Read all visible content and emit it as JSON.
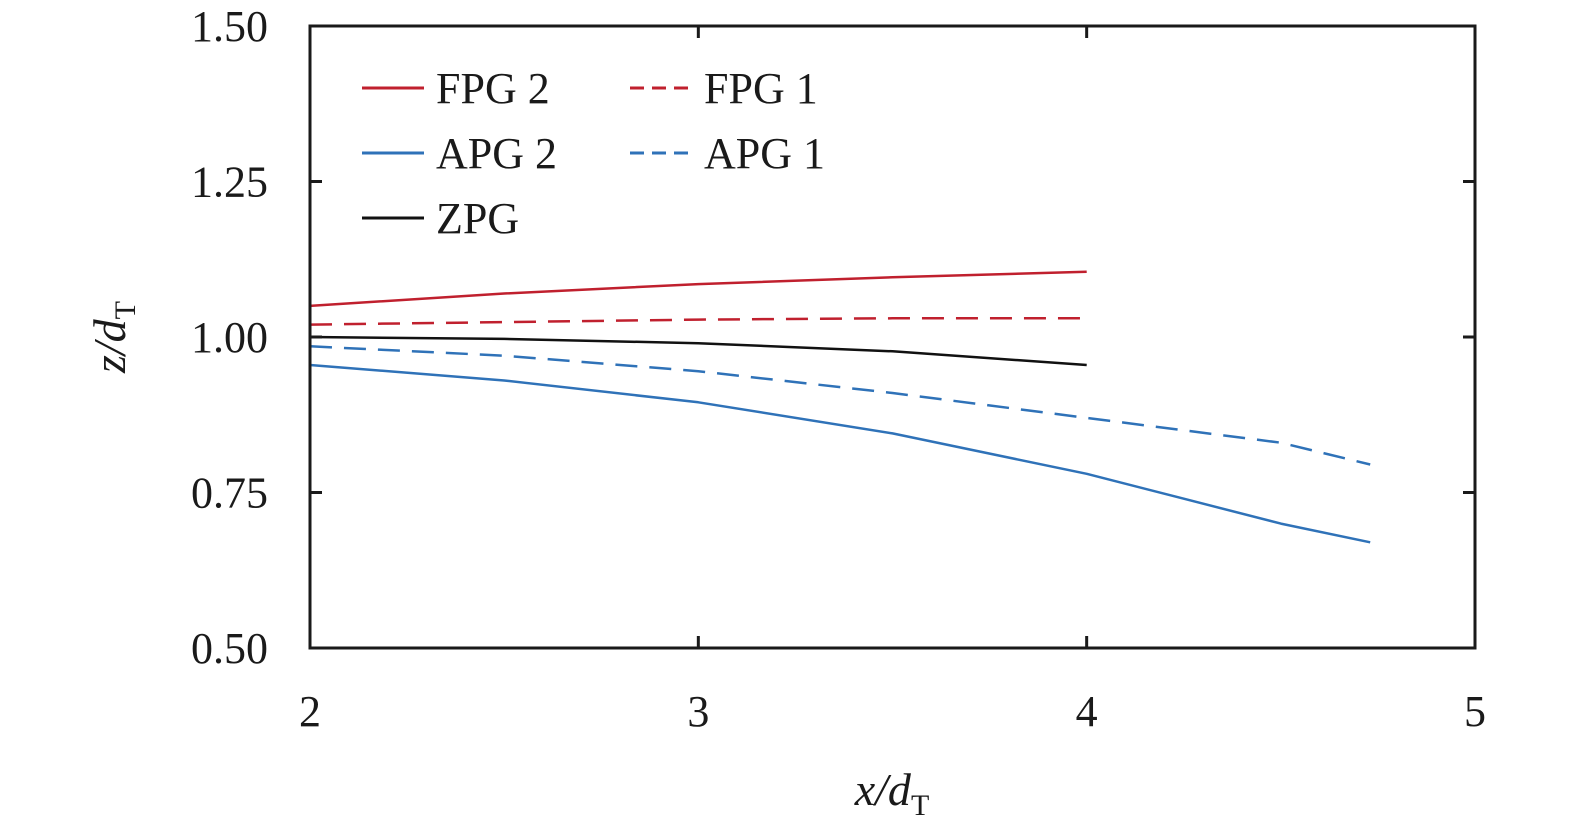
{
  "chart_data": {
    "type": "line",
    "xlabel": {
      "main": "x/d",
      "sub": "T"
    },
    "ylabel": {
      "main": "z/d",
      "sub": "T"
    },
    "xlim": [
      2,
      5
    ],
    "ylim": [
      0.5,
      1.5
    ],
    "x_ticks": [
      "2",
      "3",
      "4",
      "5"
    ],
    "y_ticks": [
      "0.50",
      "0.75",
      "1.00",
      "1.25",
      "1.50"
    ],
    "grid": false,
    "legend_position": "top-left",
    "series": [
      {
        "name": "FPG 2",
        "color": "#c0202e",
        "dash": "solid",
        "x": [
          2.0,
          2.5,
          3.0,
          3.5,
          4.0
        ],
        "y": [
          1.05,
          1.07,
          1.085,
          1.096,
          1.105
        ]
      },
      {
        "name": "FPG 1",
        "color": "#c0202e",
        "dash": "dashed",
        "x": [
          2.0,
          2.5,
          3.0,
          3.5,
          4.0
        ],
        "y": [
          1.02,
          1.024,
          1.028,
          1.03,
          1.03
        ]
      },
      {
        "name": "APG 2",
        "color": "#2f72b8",
        "dash": "solid",
        "x": [
          2.0,
          2.5,
          3.0,
          3.5,
          4.0,
          4.25,
          4.5,
          4.73
        ],
        "y": [
          0.955,
          0.93,
          0.895,
          0.845,
          0.78,
          0.74,
          0.7,
          0.67
        ]
      },
      {
        "name": "APG 1",
        "color": "#2f72b8",
        "dash": "dashed",
        "x": [
          2.0,
          2.5,
          3.0,
          3.5,
          4.0,
          4.5,
          4.73
        ],
        "y": [
          0.985,
          0.97,
          0.945,
          0.91,
          0.87,
          0.83,
          0.795
        ]
      },
      {
        "name": "ZPG",
        "color": "#111111",
        "dash": "solid",
        "x": [
          2.0,
          2.5,
          3.0,
          3.5,
          4.0
        ],
        "y": [
          1.0,
          0.997,
          0.99,
          0.977,
          0.955
        ]
      }
    ]
  }
}
